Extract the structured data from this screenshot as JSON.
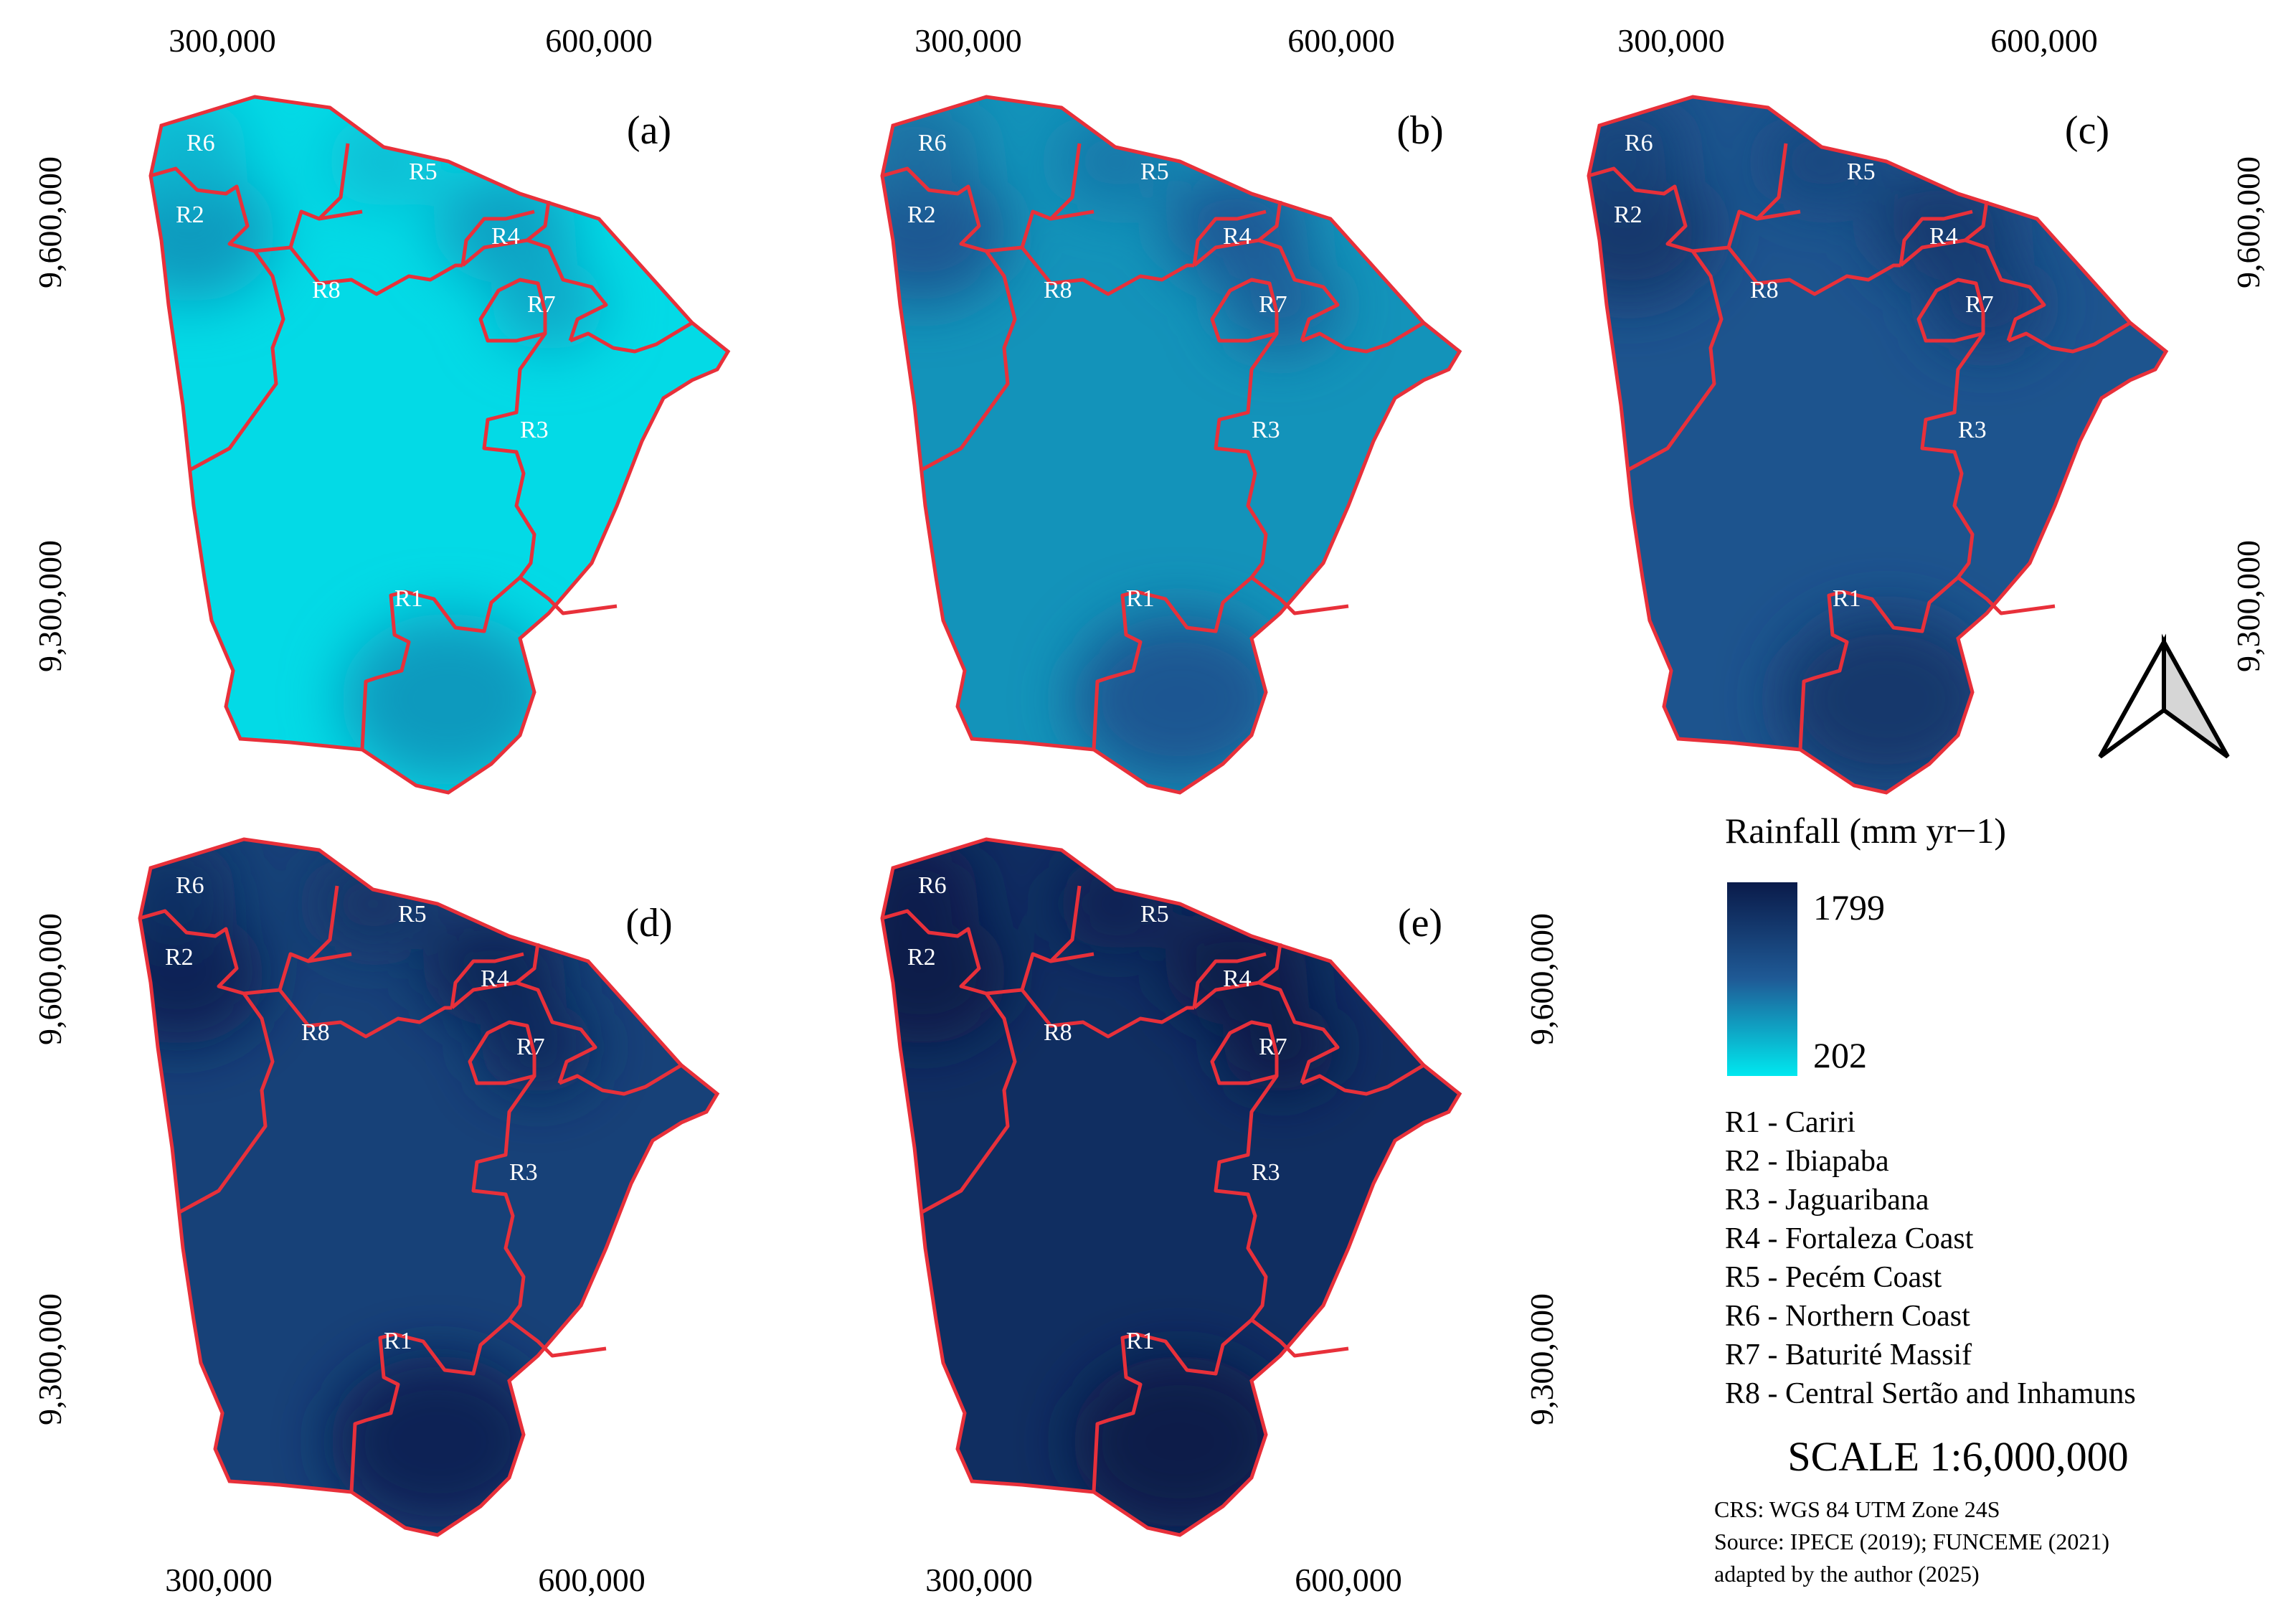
{
  "tick_labels": {
    "x": [
      "300,000",
      "600,000"
    ],
    "y": [
      "9,600,000",
      "9,300,000"
    ]
  },
  "panels": [
    {
      "label": "(a)",
      "intensity": 0.05
    },
    {
      "label": "(b)",
      "intensity": 0.3
    },
    {
      "label": "(c)",
      "intensity": 0.55
    },
    {
      "label": "(d)",
      "intensity": 0.7
    },
    {
      "label": "(e)",
      "intensity": 0.85
    }
  ],
  "region_labels": [
    "R1",
    "R2",
    "R3",
    "R4",
    "R5",
    "R6",
    "R7",
    "R8"
  ],
  "legend": {
    "title": "Rainfall (mm yr−1)",
    "max_label": "1799",
    "min_label": "202",
    "color_max": "#0a1b4a",
    "color_mid": "#1f5a96",
    "color_min": "#00e8ef",
    "items": [
      "R1 - Cariri",
      "R2 - Ibiapaba",
      "R3 - Jaguaribana",
      "R4 - Fortaleza Coast",
      "R5 - Pecém Coast",
      "R6 - Northern Coast",
      "R7 - Baturité Massif",
      "R8 - Central Sertão and Inhamuns"
    ]
  },
  "scale": "SCALE 1:6,000,000",
  "credits": {
    "crs": "CRS: WGS 84 UTM Zone 24S",
    "source": "Source:   IPECE   (2019);   FUNCEME   (2021)",
    "adapted": "adapted by the author (2025)"
  },
  "colors": {
    "boundary": "#e8303a",
    "region_text": "#ffffff"
  }
}
